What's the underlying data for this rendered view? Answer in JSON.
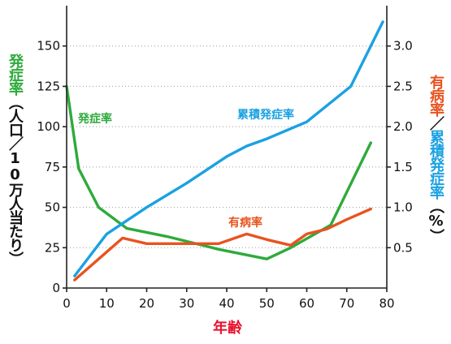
{
  "chart_data": {
    "type": "line",
    "xlabel": "年齢",
    "xlim": [
      0,
      80
    ],
    "x_ticks": [
      "0",
      "10",
      "20",
      "30",
      "40",
      "50",
      "60",
      "70",
      "80"
    ],
    "y_left": {
      "label_parts": [
        {
          "text": "発症率",
          "color": "#2eaa3c"
        },
        {
          "text": "（人口／10万人当たり）",
          "color": "#111111"
        }
      ],
      "ylim": [
        0,
        175
      ],
      "ticks": [
        "0",
        "25",
        "50",
        "75",
        "100",
        "125",
        "150"
      ]
    },
    "y_right": {
      "label_parts": [
        {
          "text": "有病率",
          "color": "#e8531f"
        },
        {
          "text": "／",
          "color": "#111111"
        },
        {
          "text": "累積発症率",
          "color": "#1ba1e2"
        },
        {
          "text": "（%）",
          "color": "#111111"
        }
      ],
      "ylim": [
        0,
        3.5
      ],
      "ticks": [
        "0.5",
        "1.0",
        "1.5",
        "2.0",
        "2.5",
        "3.0"
      ]
    },
    "grid": true,
    "series": [
      {
        "name": "発症率",
        "axis": "left",
        "color": "#2eaa3c",
        "x": [
          0,
          3,
          8,
          15,
          25,
          38,
          50,
          56,
          66,
          76
        ],
        "y": [
          125,
          74,
          50,
          37,
          32,
          24,
          18,
          25,
          39,
          90
        ]
      },
      {
        "name": "有病率",
        "axis": "right",
        "color": "#e8531f",
        "x": [
          2,
          14,
          20,
          25,
          38,
          45,
          50,
          56,
          60,
          65,
          70,
          76
        ],
        "y": [
          0.1,
          0.62,
          0.55,
          0.55,
          0.55,
          0.67,
          0.6,
          0.53,
          0.67,
          0.73,
          0.85,
          0.98
        ]
      },
      {
        "name": "累積発症率",
        "axis": "right",
        "color": "#1ba1e2",
        "x": [
          2,
          10,
          20,
          30,
          40,
          45,
          50,
          60,
          71,
          79
        ],
        "y": [
          0.15,
          0.67,
          1.0,
          1.3,
          1.63,
          1.76,
          1.85,
          2.06,
          2.5,
          3.3
        ]
      }
    ]
  }
}
